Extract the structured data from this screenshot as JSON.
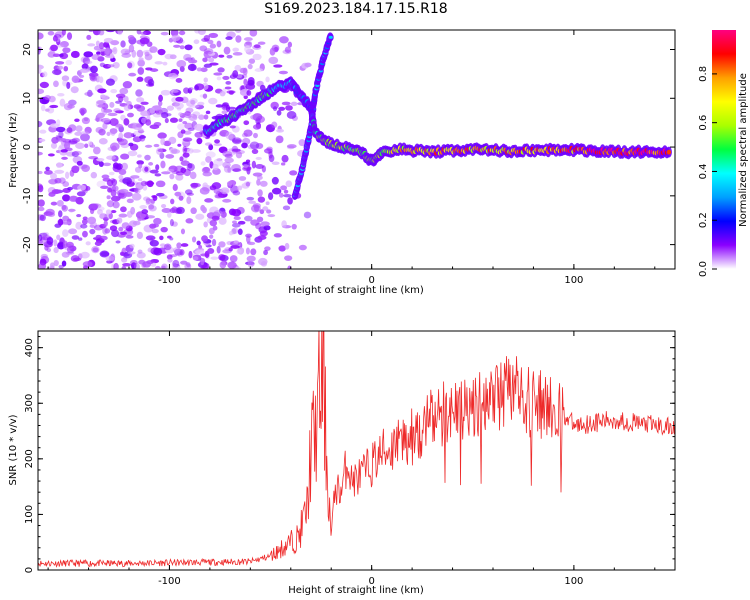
{
  "title": "S169.2023.184.17.15.R18",
  "colors": {
    "snr_line": "#ee2a2a",
    "colormap": [
      "#ffffff",
      "#8a00ff",
      "#0000ff",
      "#00a0ff",
      "#00ffff",
      "#00ff40",
      "#aaff00",
      "#ffff00",
      "#ffa000",
      "#ff0000",
      "#ff0080"
    ]
  },
  "chart_data": [
    {
      "type": "heatmap",
      "xlabel": "Height of straight line (km)",
      "ylabel": "Frequency (Hz)",
      "xlim": [
        -165,
        150
      ],
      "ylim": [
        -25,
        24
      ],
      "xticks": [
        "-100",
        "0",
        "100"
      ],
      "yticks": [
        "-20",
        "-10",
        "0",
        "10",
        "20"
      ],
      "colorbar": {
        "label": "Normalized spectral amplitude",
        "range": [
          0.0,
          0.98
        ],
        "ticks": [
          "0.0",
          "0.2",
          "0.4",
          "0.6",
          "0.8"
        ]
      },
      "ridge": [
        {
          "x": -82,
          "y": 3,
          "amp": 0.35
        },
        {
          "x": -75,
          "y": 5,
          "amp": 0.45
        },
        {
          "x": -70,
          "y": 6,
          "amp": 0.5
        },
        {
          "x": -62,
          "y": 8,
          "amp": 0.45
        },
        {
          "x": -55,
          "y": 10,
          "amp": 0.5
        },
        {
          "x": -48,
          "y": 12,
          "amp": 0.4
        },
        {
          "x": -40,
          "y": 13,
          "amp": 0.3
        },
        {
          "x": -30,
          "y": 8,
          "amp": 0.25
        },
        {
          "x": -28,
          "y": 3,
          "amp": 0.5
        },
        {
          "x": -22,
          "y": 1,
          "amp": 0.55
        },
        {
          "x": -15,
          "y": 0,
          "amp": 0.6
        },
        {
          "x": -5,
          "y": -1,
          "amp": 0.55
        },
        {
          "x": 0,
          "y": -3,
          "amp": 0.6
        },
        {
          "x": 5,
          "y": -1,
          "amp": 0.6
        },
        {
          "x": 15,
          "y": -0.5,
          "amp": 0.7
        },
        {
          "x": 30,
          "y": -1,
          "amp": 0.75
        },
        {
          "x": 50,
          "y": -0.5,
          "amp": 0.75
        },
        {
          "x": 70,
          "y": -0.8,
          "amp": 0.75
        },
        {
          "x": 95,
          "y": -0.5,
          "amp": 0.8
        },
        {
          "x": 120,
          "y": -1,
          "amp": 0.95
        },
        {
          "x": 148,
          "y": -1,
          "amp": 0.95
        }
      ],
      "branch": [
        {
          "x": -38,
          "y": -10,
          "amp": 0.35
        },
        {
          "x": -34,
          "y": -4,
          "amp": 0.35
        },
        {
          "x": -30,
          "y": 4,
          "amp": 0.35
        },
        {
          "x": -28,
          "y": 11,
          "amp": 0.3
        },
        {
          "x": -24,
          "y": 18,
          "amp": 0.3
        },
        {
          "x": -20,
          "y": 23,
          "amp": 0.3
        }
      ]
    },
    {
      "type": "line",
      "xlabel": "Height of straight line (km)",
      "ylabel": "SNR (10 * v/v)",
      "xlim": [
        -165,
        150
      ],
      "ylim": [
        0,
        430
      ],
      "xticks": [
        "-100",
        "0",
        "100"
      ],
      "yticks": [
        "0",
        "100",
        "200",
        "300",
        "400"
      ],
      "series": [
        {
          "x": [
            -165,
            -120,
            -80,
            -60,
            -50,
            -42,
            -36,
            -32,
            -30,
            -28,
            -26,
            -24,
            -22,
            -20,
            -18,
            -15,
            -12,
            -10,
            -5,
            0,
            5,
            10,
            15,
            20,
            25,
            30,
            40,
            50,
            60,
            70,
            80,
            90,
            95,
            100,
            110,
            120,
            130,
            140,
            150
          ],
          "values": [
            12,
            12,
            14,
            15,
            25,
            45,
            60,
            110,
            220,
            240,
            310,
            350,
            180,
            60,
            150,
            140,
            200,
            160,
            170,
            190,
            210,
            220,
            230,
            240,
            255,
            270,
            290,
            300,
            310,
            320,
            300,
            290,
            280,
            260,
            265,
            270,
            265,
            260,
            255
          ]
        }
      ]
    }
  ]
}
